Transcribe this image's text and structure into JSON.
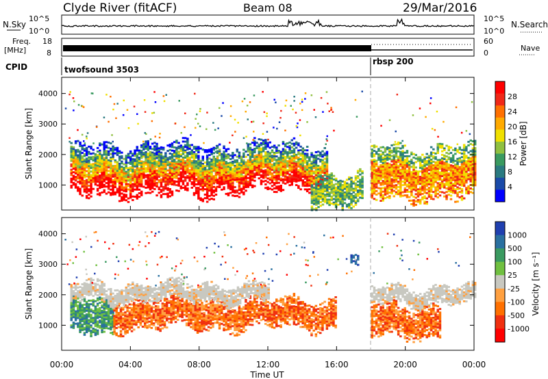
{
  "header": {
    "station": "Clyde River (fitACF)",
    "beam": "Beam 08",
    "date": "29/Mar/2016"
  },
  "top_panels": {
    "nsky_label": "N.Sky",
    "nsky_ticks": [
      "10^5",
      "10^0"
    ],
    "nsearch_label": "N.Search",
    "nsearch_ticks": [
      "10^5",
      "10^0"
    ],
    "freq_label_1": "Freq.",
    "freq_label_2": "[MHz]",
    "freq_ticks": [
      "18",
      "8"
    ],
    "nave_label": "Nave",
    "nave_ticks": [
      "60",
      "0"
    ],
    "cpid_label": "CPID",
    "cpid_modes": [
      {
        "name": "twofsound 3503",
        "start_hour": 0
      },
      {
        "name": "rbsp 200",
        "start_hour": 18
      }
    ]
  },
  "chart_data": [
    {
      "type": "heatmap",
      "panel": "power",
      "ylabel": "Slant Range [km]",
      "xlabel": "",
      "x_ticks": [
        "00:00",
        "04:00",
        "08:00",
        "12:00",
        "16:00",
        "20:00",
        "00:00"
      ],
      "xlim_hours": [
        0,
        24
      ],
      "y_ticks": [
        1000,
        2000,
        3000,
        4000
      ],
      "ylim": [
        180,
        4530
      ],
      "colorbar": {
        "label": "Power [dB]",
        "ticks": [
          "28",
          "24",
          "20",
          "16",
          "12",
          "8",
          "4"
        ],
        "colors": [
          "#ff0000",
          "#f02818",
          "#ff7000",
          "#ffaa00",
          "#f0e000",
          "#90c040",
          "#3a9a60",
          "#2a7a80",
          "#1a4aa8",
          "#0000ff"
        ]
      },
      "regions": [
        {
          "from_hour": 0.5,
          "to_hour": 9.0,
          "from_km": 650,
          "to_km": 2350,
          "dominant": "strong 20-28 dB near 900-1500 km, weaker blue edges near 2000 km"
        },
        {
          "from_hour": 9.0,
          "to_hour": 15.5,
          "from_km": 800,
          "to_km": 2400,
          "dominant": "mixed 8-24 dB"
        },
        {
          "from_hour": 14.5,
          "to_hour": 17.5,
          "from_km": 300,
          "to_km": 1400,
          "dominant": "green/orange 12-20 dB"
        },
        {
          "from_hour": 18.0,
          "to_hour": 24.0,
          "from_km": 500,
          "to_km": 2300,
          "dominant": "orange band rising from 800 km to 2000 km"
        }
      ]
    },
    {
      "type": "heatmap",
      "panel": "velocity",
      "ylabel": "Slant Range [km]",
      "xlabel": "Time UT",
      "x_ticks": [
        "00:00",
        "04:00",
        "08:00",
        "12:00",
        "16:00",
        "20:00",
        "00:00"
      ],
      "xlim_hours": [
        0,
        24
      ],
      "y_ticks": [
        1000,
        2000,
        3000,
        4000
      ],
      "ylim": [
        180,
        4530
      ],
      "colorbar": {
        "label": "Velocity [m s⁻¹]",
        "ticks": [
          "1000",
          "500",
          "100",
          "25",
          "-25",
          "-100",
          "-500",
          "-1000"
        ],
        "colors": [
          "#2040b0",
          "#2a70a0",
          "#3a9a60",
          "#70c040",
          "#c8c8c0",
          "#ffa040",
          "#ff7000",
          "#f03010",
          "#ff0000"
        ]
      },
      "regions": [
        {
          "from_hour": 0.5,
          "to_hour": 3.0,
          "from_km": 700,
          "to_km": 1900,
          "dominant": "green/teal 25-500"
        },
        {
          "from_hour": 3.0,
          "to_hour": 16.0,
          "from_km": 900,
          "to_km": 1900,
          "dominant": "orange -100 to -500"
        },
        {
          "from_hour": 0.5,
          "to_hour": 12.0,
          "from_km": 1800,
          "to_km": 2400,
          "dominant": "gray -25 to 25"
        },
        {
          "from_hour": 18.0,
          "to_hour": 24.0,
          "from_km": 1700,
          "to_km": 2300,
          "dominant": "gray band"
        },
        {
          "from_hour": 18.0,
          "to_hour": 22.0,
          "from_km": 600,
          "to_km": 1700,
          "dominant": "orange -100 to -500"
        },
        {
          "from_hour": 16.8,
          "to_hour": 17.2,
          "from_km": 2900,
          "to_km": 3300,
          "dominant": "blue 500-1000"
        }
      ]
    }
  ]
}
